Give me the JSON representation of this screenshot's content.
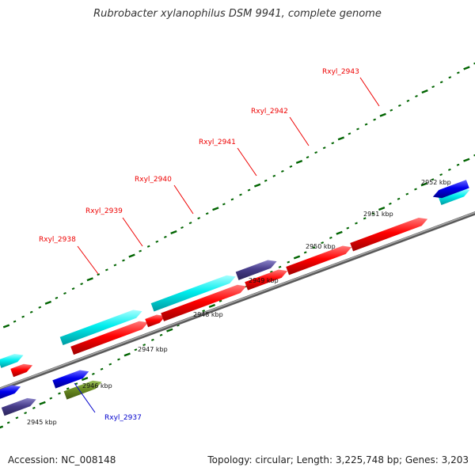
{
  "title": "Rubrobacter xylanophilus DSM 9941, complete genome",
  "footer": {
    "accession": "Accession: NC_008148",
    "summary": "Topology: circular; Length: 3,225,748 bp; Genes: 3,203"
  },
  "colors": {
    "backbone": "#888888",
    "forward_cds": "#00e5ee",
    "reverse_cds": "#ff0000",
    "blue_gene": "#0000ee",
    "navy_gene": "#483d8b",
    "olive_gene": "#6b8e23",
    "label_red": "#ee0000",
    "label_blue": "#0000cc",
    "tick_green": "#006400"
  },
  "kbp_labels": [
    "2945 kbp",
    "2946 kbp",
    "2947 kbp",
    "2948 kbp",
    "2949 kbp",
    "2950 kbp",
    "2951 kbp",
    "2952 kbp"
  ],
  "gene_labels": [
    "Rxyl_2937",
    "Rxyl_2938",
    "Rxyl_2939",
    "Rxyl_2940",
    "Rxyl_2941",
    "Rxyl_2942",
    "Rxyl_2943"
  ]
}
